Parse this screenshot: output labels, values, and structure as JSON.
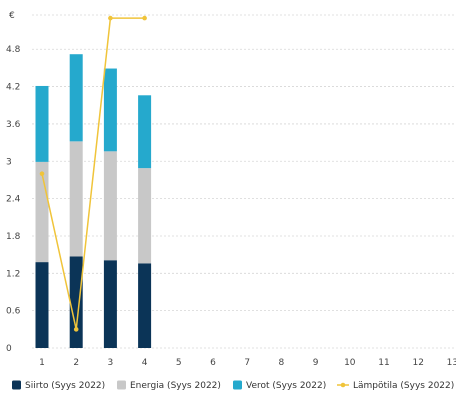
{
  "chart_data": {
    "type": "bar",
    "stacked": true,
    "y_unit": "€",
    "categories": [
      "1",
      "2",
      "3",
      "4",
      "5",
      "6",
      "7",
      "8",
      "9",
      "10",
      "11",
      "12",
      "13"
    ],
    "y_ticks": [
      "0",
      "0.6",
      "1.2",
      "1.8",
      "2.4",
      "3",
      "3.6",
      "4.2",
      "4.8"
    ],
    "ylim": [
      0,
      5.35
    ],
    "grid": true,
    "legend_position": "bottom",
    "series": [
      {
        "name": "Siirto (Syys 2022)",
        "kind": "bar",
        "color": "#0b3457",
        "values": [
          1.38,
          1.47,
          1.41,
          1.36,
          null,
          null,
          null,
          null,
          null,
          null,
          null,
          null,
          null
        ]
      },
      {
        "name": "Energia (Syys 2022)",
        "kind": "bar",
        "color": "#c8c8c8",
        "values": [
          1.61,
          1.85,
          1.75,
          1.53,
          null,
          null,
          null,
          null,
          null,
          null,
          null,
          null,
          null
        ]
      },
      {
        "name": "Verot (Syys 2022)",
        "kind": "bar",
        "color": "#25a9cd",
        "values": [
          1.22,
          1.4,
          1.33,
          1.17,
          null,
          null,
          null,
          null,
          null,
          null,
          null,
          null,
          null
        ]
      },
      {
        "name": "Lämpötila (Syys 2022)",
        "kind": "line",
        "color": "#f0c43a",
        "x": [
          "1",
          "2",
          "3",
          "4"
        ],
        "values": [
          2.8,
          0.3,
          5.3,
          5.3
        ]
      }
    ]
  }
}
